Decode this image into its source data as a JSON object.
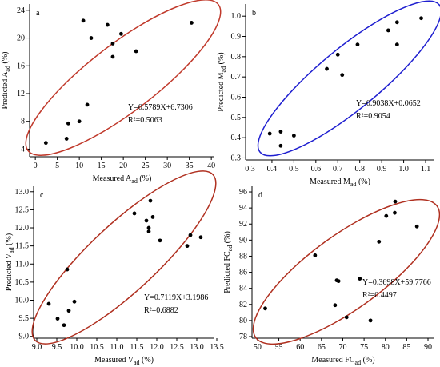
{
  "chart_data": [
    {
      "type": "scatter",
      "title": "a",
      "x_label": {
        "text": "Measured A",
        "sub": "ad",
        "tail": " (%)"
      },
      "y_label": {
        "text": "Predicted A",
        "sub": "ad",
        "tail": " (%)"
      },
      "annotations": [
        "Y=0.5789X+6.7306",
        "R²=0.5063"
      ],
      "x": [
        2.4,
        7.1,
        7.5,
        10.0,
        11.8,
        10.9,
        12.7,
        16.4,
        17.6,
        17.6,
        19.5,
        22.9,
        35.5
      ],
      "values": [
        4.9,
        5.5,
        7.7,
        8.0,
        10.4,
        22.5,
        20.0,
        21.9,
        19.2,
        17.3,
        20.6,
        18.1,
        22.2
      ],
      "color": "#000000",
      "ellipse_color": "#c0392b",
      "xlim": [
        -1.3,
        40.7
      ],
      "ylim": [
        2.9,
        24.9
      ],
      "xticks": [
        0,
        5,
        10,
        15,
        20,
        25,
        30,
        35,
        40
      ],
      "yticks": [
        4,
        8,
        12,
        16,
        20,
        24
      ]
    },
    {
      "type": "scatter",
      "title": "b",
      "x_label": {
        "text": "Measured M",
        "sub": "ad",
        "tail": " (%)"
      },
      "y_label": {
        "text": "Predicted M",
        "sub": "ad",
        "tail": " (%)"
      },
      "annotations": [
        "Y=0.9038X+0.0652",
        "R²=0.9054"
      ],
      "x": [
        0.39,
        0.44,
        0.44,
        0.5,
        0.65,
        0.7,
        0.72,
        0.79,
        0.93,
        0.97,
        0.97,
        1.08
      ],
      "values": [
        0.42,
        0.43,
        0.36,
        0.41,
        0.74,
        0.81,
        0.71,
        0.86,
        0.93,
        0.97,
        0.86,
        0.99
      ],
      "color": "#000000",
      "ellipse_color": "#1f1fd0",
      "xlim": [
        0.28,
        1.14
      ],
      "ylim": [
        0.29,
        1.06
      ],
      "xticks": [
        0.3,
        0.4,
        0.5,
        0.6,
        0.7,
        0.8,
        0.9,
        {
          "value": 1.0,
          "label": "1.0"
        },
        1.1
      ],
      "yticks": [
        0.3,
        0.4,
        0.5,
        0.6,
        0.7,
        0.8,
        0.9,
        {
          "value": 1.0,
          "label": "1.0"
        }
      ]
    },
    {
      "type": "scatter",
      "title": "c",
      "x_label": {
        "text": "Measured V",
        "sub": "ad",
        "tail": " (%)"
      },
      "y_label": {
        "text": "Predicted V",
        "sub": "ad",
        "tail": " (%)"
      },
      "annotations": [
        "Y=0.7119X+3.1986",
        "R²=0.6882"
      ],
      "x": [
        9.3,
        9.52,
        9.68,
        9.76,
        9.8,
        9.94,
        11.44,
        11.84,
        11.74,
        11.8,
        11.8,
        11.9,
        12.08,
        12.76,
        12.84,
        13.1
      ],
      "values": [
        9.9,
        9.49,
        9.31,
        10.85,
        9.71,
        9.96,
        12.4,
        12.75,
        12.2,
        11.9,
        12.0,
        12.3,
        11.65,
        11.5,
        11.8,
        11.74
      ],
      "color": "#000000",
      "ellipse_color": "#b03020",
      "xlim": [
        8.92,
        13.44
      ],
      "ylim": [
        8.95,
        13.15
      ],
      "xticks": [
        {
          "value": 9.0,
          "label": "9.0"
        },
        9.5,
        {
          "value": 10.0,
          "label": "10.0"
        },
        10.5,
        {
          "value": 11.0,
          "label": "11.0"
        },
        11.5,
        {
          "value": 12.0,
          "label": "12.0"
        },
        12.5,
        {
          "value": 13.0,
          "label": "13.0"
        },
        13.5
      ],
      "yticks": [
        {
          "value": 9.0,
          "label": "9.0"
        },
        9.5,
        {
          "value": 10.0,
          "label": "10.0"
        },
        10.5,
        {
          "value": 11.0,
          "label": "11.0"
        },
        11.5,
        {
          "value": 12.0,
          "label": "12.0"
        },
        12.5,
        {
          "value": 13.0,
          "label": "13.0"
        }
      ]
    },
    {
      "type": "scatter",
      "title": "d",
      "x_label": {
        "text": "Measured FC",
        "sub": "ad",
        "tail": " (%)"
      },
      "y_label": {
        "text": "Predicted FC",
        "sub": "ad",
        "tail": " (%)"
      },
      "annotations": [
        "Y=0.3698X+59.7766",
        "R²=0.4497"
      ],
      "x": [
        51.8,
        63.5,
        68.2,
        68.6,
        69.0,
        70.9,
        74.0,
        76.5,
        78.5,
        80.2,
        82.3,
        82.2,
        87.4
      ],
      "values": [
        81.5,
        88.1,
        81.9,
        85.0,
        84.9,
        80.4,
        85.2,
        80.0,
        89.8,
        93.0,
        94.8,
        93.4,
        91.7
      ],
      "color": "#000000",
      "ellipse_color": "#b03020",
      "xlim": [
        48.7,
        91.5
      ],
      "ylim": [
        77.8,
        96.7
      ],
      "xticks": [
        50,
        55,
        60,
        65,
        70,
        75,
        80,
        85,
        90
      ],
      "yticks": [
        78,
        80,
        82,
        84,
        86,
        88,
        90,
        92,
        94,
        96
      ]
    }
  ]
}
